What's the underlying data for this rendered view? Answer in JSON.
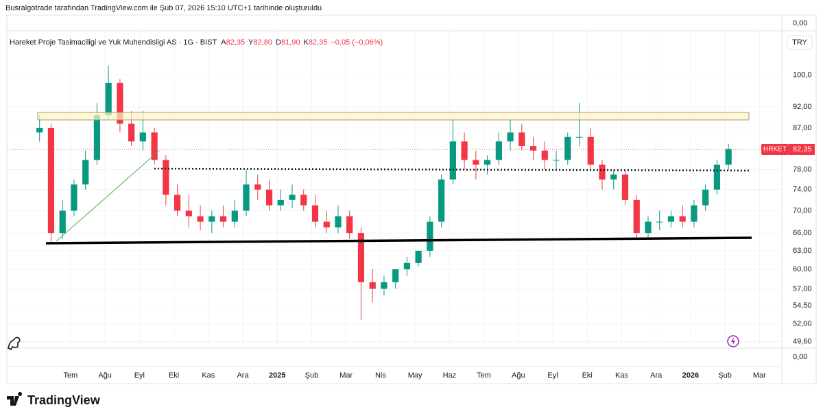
{
  "header": {
    "credit": "Busralgotrade tarafından TradingView.com ile Şub 07, 2026 15:10 UTC+1 tarihinde oluşturuldu",
    "logo": "TradingView"
  },
  "chart_data": {
    "type": "candlestick",
    "title": "Hareket Proje Tasimaciligi ve Yuk Muhendisligi AS · 1G · BIST",
    "ohlc_legend": [
      {
        "label": "A",
        "value": "82,35"
      },
      {
        "label": "Y",
        "value": "82,80"
      },
      {
        "label": "D",
        "value": "81,90"
      },
      {
        "label": "K",
        "value": "82,35"
      }
    ],
    "change": "−0,05 (−0,06%)",
    "currency": "TRY",
    "symbol": "HRKET",
    "last_price_label": "82,35",
    "top_pane_label": "0,00",
    "bottom_pane_label": "0,00",
    "up_color": "#089981",
    "down_color": "#f23645",
    "log_scale": true,
    "grid": true,
    "open": [
      86,
      87,
      66,
      70,
      75,
      80,
      90,
      98,
      88,
      84,
      86,
      80,
      73,
      70,
      69,
      68,
      69,
      68,
      70,
      75,
      74,
      71,
      72,
      73,
      71,
      68,
      67,
      69,
      66,
      58,
      57,
      58,
      60,
      61,
      63,
      68,
      76,
      84,
      80,
      79,
      80,
      84,
      86,
      83,
      82,
      80,
      80,
      85,
      85,
      79,
      76,
      77,
      72,
      66,
      68,
      68,
      69,
      68,
      71,
      74,
      79
    ],
    "high": [
      90,
      88,
      72,
      76,
      82,
      93,
      102.5,
      99,
      91,
      91,
      87,
      81,
      75,
      73,
      71,
      70,
      71,
      72,
      78,
      77,
      76,
      74,
      75,
      74,
      73,
      70,
      71,
      70,
      67,
      60,
      59,
      60,
      62,
      63,
      69,
      77,
      89,
      86,
      82,
      81,
      86,
      89,
      88,
      85,
      84,
      82,
      86,
      93,
      87,
      80,
      78,
      78,
      73,
      69,
      70,
      70,
      71,
      72,
      75,
      80,
      83.5
    ],
    "low": [
      84,
      64.5,
      65,
      69,
      74,
      79,
      89,
      86,
      83,
      82,
      79,
      71,
      69,
      67,
      66.5,
      66,
      67,
      67,
      69,
      72,
      70,
      70,
      70.5,
      70,
      67,
      66,
      66,
      65,
      52.5,
      55,
      56,
      57,
      59,
      60.5,
      62,
      67,
      75,
      78,
      76,
      77,
      79,
      82,
      82,
      80,
      78,
      78,
      79,
      83,
      78,
      74,
      74,
      71,
      65,
      65,
      66.5,
      67,
      67,
      67,
      70,
      73,
      78
    ],
    "close": [
      87,
      66,
      70,
      75,
      80,
      90,
      98,
      88,
      84,
      86,
      80,
      73,
      70,
      69,
      68,
      69,
      68,
      70,
      75,
      74,
      71,
      72,
      73,
      71,
      68,
      67,
      69,
      66,
      58,
      57,
      58,
      60,
      61,
      63,
      68,
      76,
      84,
      80,
      79,
      80,
      84,
      86,
      83,
      82,
      80,
      80,
      85,
      85,
      79,
      76,
      77,
      72,
      66,
      68,
      68,
      69,
      68,
      71,
      74,
      79,
      82.35
    ],
    "xlim": [
      -2.85,
      64.65
    ],
    "xticks": [
      {
        "value": 2.7,
        "label": "Tem"
      },
      {
        "value": 5.7,
        "label": "Ağu"
      },
      {
        "value": 8.7,
        "label": "Eyl"
      },
      {
        "value": 11.7,
        "label": "Eki"
      },
      {
        "value": 14.7,
        "label": "Kas"
      },
      {
        "value": 17.7,
        "label": "Ara"
      },
      {
        "value": 20.7,
        "label": "2025"
      },
      {
        "value": 23.7,
        "label": "Şub"
      },
      {
        "value": 26.7,
        "label": "Mar"
      },
      {
        "value": 29.7,
        "label": "Nis"
      },
      {
        "value": 32.7,
        "label": "May"
      },
      {
        "value": 35.7,
        "label": "Haz"
      },
      {
        "value": 38.7,
        "label": "Tem"
      },
      {
        "value": 41.7,
        "label": "Ağu"
      },
      {
        "value": 44.7,
        "label": "Eyl"
      },
      {
        "value": 47.7,
        "label": "Eki"
      },
      {
        "value": 50.7,
        "label": "Kas"
      },
      {
        "value": 53.7,
        "label": "Ara"
      },
      {
        "value": 56.7,
        "label": "2026"
      },
      {
        "value": 59.7,
        "label": "Şub"
      },
      {
        "value": 62.7,
        "label": "Mar"
      }
    ],
    "ylim": [
      48.5,
      105.5
    ],
    "yticks": [
      {
        "value": 100,
        "label": "100,0"
      },
      {
        "value": 92,
        "label": "92,00"
      },
      {
        "value": 87,
        "label": "87,00"
      },
      {
        "value": 78,
        "label": "78,00"
      },
      {
        "value": 74,
        "label": "74,00"
      },
      {
        "value": 70,
        "label": "70,00"
      },
      {
        "value": 66,
        "label": "66,00"
      },
      {
        "value": 63,
        "label": "63,00"
      },
      {
        "value": 60,
        "label": "60,00"
      },
      {
        "value": 57,
        "label": "57,00"
      },
      {
        "value": 54.5,
        "label": "54,50"
      },
      {
        "value": 52,
        "label": "52,00"
      },
      {
        "value": 49.6,
        "label": "49,60"
      }
    ]
  }
}
